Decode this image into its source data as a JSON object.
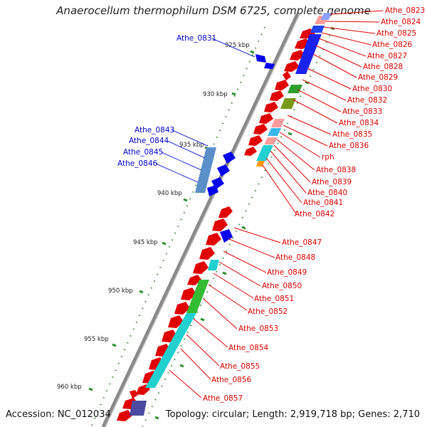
{
  "title": "Anaerocellum thermophilum DSM 6725, complete genome",
  "footer": {
    "accession": "Accession: NC_012034",
    "topology": "Topology: circular; Length: 2,919,718 bp; Genes: 2,710"
  },
  "colors": {
    "backbone": "#888888",
    "forward_label": "#dd0000",
    "reverse_label": "#0000cc",
    "tick_dots": "#2f8f2f"
  },
  "ticks": [
    "925 kbp",
    "930 kbp",
    "935 kbp",
    "940 kbp",
    "945 kbp",
    "950 kbp",
    "955 kbp",
    "960 kbp"
  ],
  "reverse_labels": [
    "Athe_0831",
    "Athe_0843",
    "Athe_0844",
    "Athe_0845",
    "Athe_0846"
  ],
  "forward_labels": [
    "Athe_0823",
    "Athe_0824",
    "Athe_0825",
    "Athe_0826",
    "Athe_0827",
    "Athe_0828",
    "Athe_0829",
    "Athe_0830",
    "Athe_0832",
    "Athe_0833",
    "Athe_0834",
    "Athe_0835",
    "Athe_0836",
    "rph",
    "Athe_0838",
    "Athe_0839",
    "Athe_0840",
    "Athe_0841",
    "Athe_0842",
    "Athe_0847",
    "Athe_0848",
    "Athe_0849",
    "Athe_0850",
    "Athe_0851",
    "Athe_0852",
    "Athe_0853",
    "Athe_0854",
    "Athe_0855",
    "Athe_0856",
    "Athe_0857"
  ]
}
